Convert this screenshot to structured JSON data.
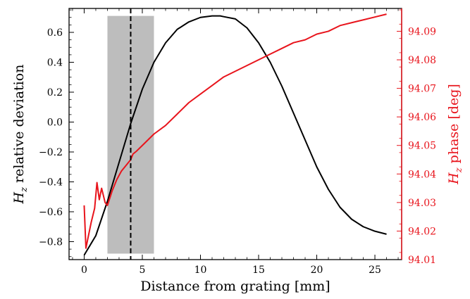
{
  "chart_data": {
    "type": "line",
    "title": "",
    "xlabel": "Distance from grating [mm]",
    "ylabel_left": {
      "base": "H",
      "sub": "z",
      "rest": " relative deviation"
    },
    "ylabel_right": {
      "base": "H",
      "sub": "z",
      "rest": " phase [deg]"
    },
    "xlim": [
      -1.3,
      27.3
    ],
    "ylim_left": [
      -0.92,
      0.76
    ],
    "ylim_right": [
      94.01,
      94.098
    ],
    "x_ticks": [
      0,
      5,
      10,
      15,
      20,
      25
    ],
    "x_tick_labels": [
      "0",
      "5",
      "10",
      "15",
      "20",
      "25"
    ],
    "y_left_ticks": [
      -0.8,
      -0.6,
      -0.4,
      -0.2,
      0.0,
      0.2,
      0.4,
      0.6
    ],
    "y_left_tick_labels": [
      "−0.8",
      "−0.6",
      "−0.4",
      "−0.2",
      "0.0",
      "0.2",
      "0.4",
      "0.6"
    ],
    "y_right_ticks": [
      94.01,
      94.02,
      94.03,
      94.04,
      94.05,
      94.06,
      94.07,
      94.08,
      94.09
    ],
    "y_right_tick_labels": [
      "94.01",
      "94.02",
      "94.03",
      "94.04",
      "94.05",
      "94.06",
      "94.07",
      "94.08",
      "94.09"
    ],
    "shaded_region": {
      "x": [
        2.0,
        6.0
      ],
      "y": [
        -0.88,
        0.71
      ],
      "color": "#bdbdbd"
    },
    "vline": {
      "x": 4.0,
      "style": "dashed",
      "color": "#000000"
    },
    "grid": false,
    "series": [
      {
        "axis": "left",
        "color": "#000000",
        "x": [
          0,
          1,
          2,
          3,
          4,
          5,
          6,
          7,
          8,
          9,
          10,
          11,
          11.7,
          12,
          13,
          14,
          15,
          16,
          17,
          18,
          19,
          20,
          21,
          22,
          23,
          24,
          25,
          26
        ],
        "y": [
          -0.89,
          -0.76,
          -0.53,
          -0.27,
          -0.01,
          0.22,
          0.4,
          0.53,
          0.62,
          0.67,
          0.7,
          0.71,
          0.71,
          0.705,
          0.69,
          0.63,
          0.53,
          0.4,
          0.24,
          0.06,
          -0.12,
          -0.3,
          -0.45,
          -0.57,
          -0.65,
          -0.7,
          -0.73,
          -0.75
        ]
      },
      {
        "axis": "right",
        "color": "#e8141c",
        "x": [
          0,
          0.15,
          0.3,
          0.6,
          0.9,
          1.1,
          1.3,
          1.5,
          1.8,
          2.0,
          2.4,
          2.8,
          3.2,
          3.6,
          4.0,
          4.2,
          4.5,
          5.0,
          5.5,
          6.0,
          7.0,
          8.0,
          9.0,
          10.0,
          11.0,
          12.0,
          13.0,
          14.0,
          15.0,
          16.0,
          17.0,
          18.0,
          19.0,
          20.0,
          21.0,
          22.0,
          23.0,
          24.0,
          25.0,
          26.0
        ],
        "y": [
          94.029,
          94.014,
          94.017,
          94.023,
          94.028,
          94.037,
          94.031,
          94.035,
          94.03,
          94.029,
          94.034,
          94.038,
          94.041,
          94.043,
          94.045,
          94.047,
          94.048,
          94.05,
          94.052,
          94.054,
          94.057,
          94.061,
          94.065,
          94.068,
          94.071,
          94.074,
          94.076,
          94.078,
          94.08,
          94.082,
          94.084,
          94.086,
          94.087,
          94.089,
          94.09,
          94.092,
          94.093,
          94.094,
          94.095,
          94.096
        ]
      }
    ]
  }
}
